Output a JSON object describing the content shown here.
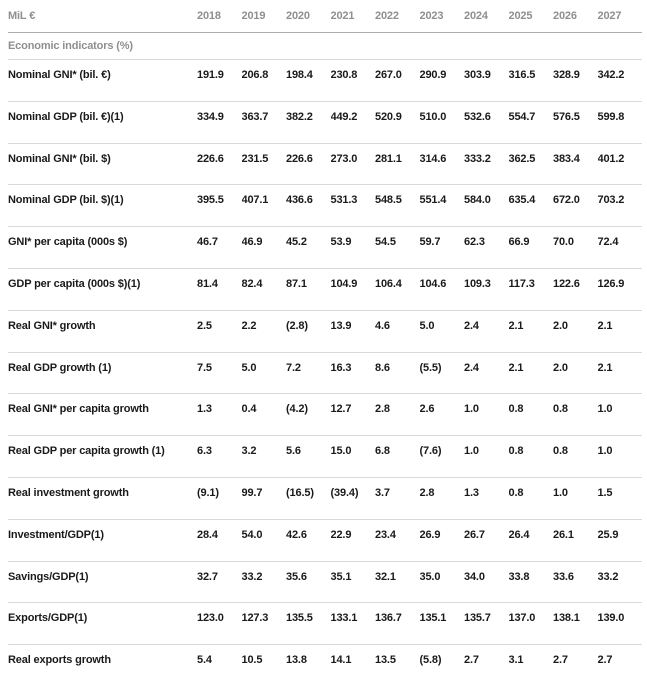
{
  "table": {
    "unit_label": "MiL €",
    "years": [
      "2018",
      "2019",
      "2020",
      "2021",
      "2022",
      "2023",
      "2024",
      "2025",
      "2026",
      "2027"
    ],
    "section_header": "Economic indicators (%)",
    "rows": [
      {
        "label": "Nominal GNI* (bil. €)",
        "values": [
          "191.9",
          "206.8",
          "198.4",
          "230.8",
          "267.0",
          "290.9",
          "303.9",
          "316.5",
          "328.9",
          "342.2"
        ]
      },
      {
        "label": "Nominal GDP (bil. €)(1)",
        "values": [
          "334.9",
          "363.7",
          "382.2",
          "449.2",
          "520.9",
          "510.0",
          "532.6",
          "554.7",
          "576.5",
          "599.8"
        ]
      },
      {
        "label": "Nominal GNI* (bil. $)",
        "values": [
          "226.6",
          "231.5",
          "226.6",
          "273.0",
          "281.1",
          "314.6",
          "333.2",
          "362.5",
          "383.4",
          "401.2"
        ]
      },
      {
        "label": "Nominal GDP (bil. $)(1)",
        "values": [
          "395.5",
          "407.1",
          "436.6",
          "531.3",
          "548.5",
          "551.4",
          "584.0",
          "635.4",
          "672.0",
          "703.2"
        ]
      },
      {
        "label": "GNI* per capita (000s $)",
        "values": [
          "46.7",
          "46.9",
          "45.2",
          "53.9",
          "54.5",
          "59.7",
          "62.3",
          "66.9",
          "70.0",
          "72.4"
        ]
      },
      {
        "label": "GDP per capita (000s $)(1)",
        "values": [
          "81.4",
          "82.4",
          "87.1",
          "104.9",
          "106.4",
          "104.6",
          "109.3",
          "117.3",
          "122.6",
          "126.9"
        ]
      },
      {
        "label": "Real GNI* growth",
        "values": [
          "2.5",
          "2.2",
          "(2.8)",
          "13.9",
          "4.6",
          "5.0",
          "2.4",
          "2.1",
          "2.0",
          "2.1"
        ]
      },
      {
        "label": "Real GDP growth (1)",
        "values": [
          "7.5",
          "5.0",
          "7.2",
          "16.3",
          "8.6",
          "(5.5)",
          "2.4",
          "2.1",
          "2.0",
          "2.1"
        ]
      },
      {
        "label": "Real GNI* per capita growth",
        "values": [
          "1.3",
          "0.4",
          "(4.2)",
          "12.7",
          "2.8",
          "2.6",
          "1.0",
          "0.8",
          "0.8",
          "1.0"
        ]
      },
      {
        "label": "Real GDP per capita growth (1)",
        "values": [
          "6.3",
          "3.2",
          "5.6",
          "15.0",
          "6.8",
          "(7.6)",
          "1.0",
          "0.8",
          "0.8",
          "1.0"
        ]
      },
      {
        "label": "Real investment growth",
        "values": [
          "(9.1)",
          "99.7",
          "(16.5)",
          "(39.4)",
          "3.7",
          "2.8",
          "1.3",
          "0.8",
          "1.0",
          "1.5"
        ]
      },
      {
        "label": "Investment/GDP(1)",
        "values": [
          "28.4",
          "54.0",
          "42.6",
          "22.9",
          "23.4",
          "26.9",
          "26.7",
          "26.4",
          "26.1",
          "25.9"
        ]
      },
      {
        "label": "Savings/GDP(1)",
        "values": [
          "32.7",
          "33.2",
          "35.6",
          "35.1",
          "32.1",
          "35.0",
          "34.0",
          "33.8",
          "33.6",
          "33.2"
        ]
      },
      {
        "label": "Exports/GDP(1)",
        "values": [
          "123.0",
          "127.3",
          "135.5",
          "133.1",
          "136.7",
          "135.1",
          "135.7",
          "137.0",
          "138.1",
          "139.0"
        ]
      },
      {
        "label": "Real exports growth",
        "values": [
          "5.4",
          "10.5",
          "13.8",
          "14.1",
          "13.5",
          "(5.8)",
          "2.7",
          "3.1",
          "2.7",
          "2.7"
        ]
      }
    ]
  },
  "colors": {
    "text_dark": "#1a1a1a",
    "text_gray": "#8f8f8f",
    "line_strong": "#adadad",
    "line_light": "#d9d9d9",
    "background": "#ffffff"
  }
}
